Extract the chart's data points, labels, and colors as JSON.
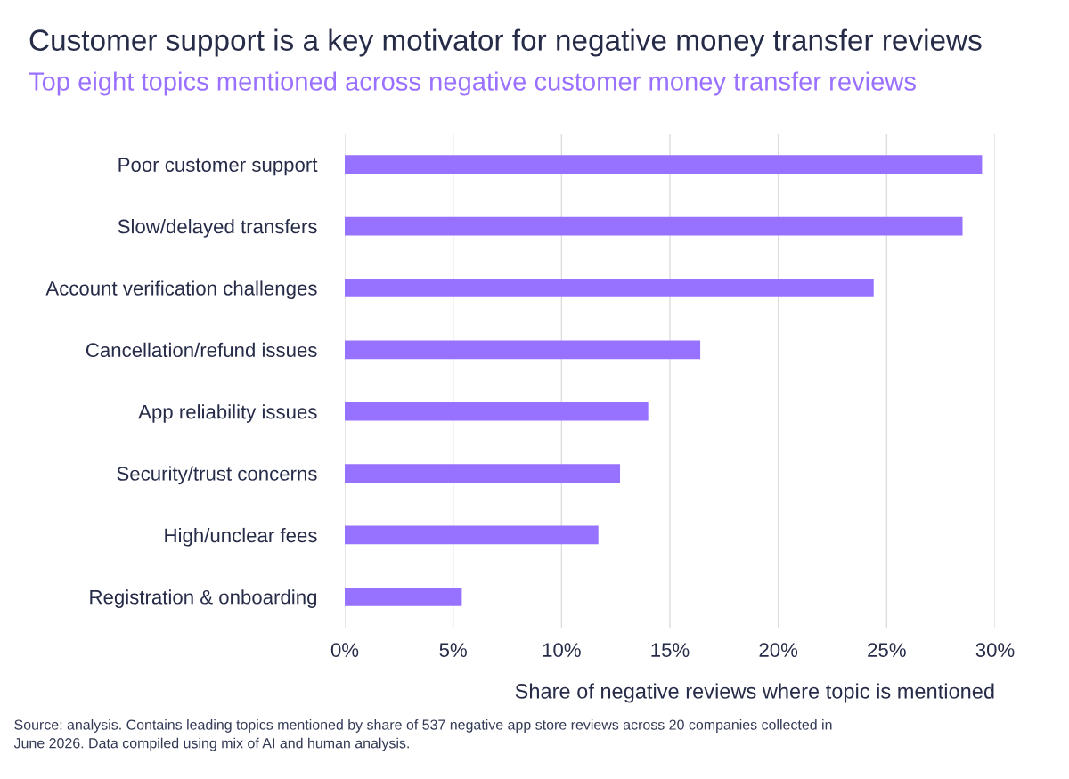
{
  "chart_data": {
    "type": "bar",
    "orientation": "horizontal",
    "title": "Customer support is a key motivator for negative money transfer reviews",
    "subtitle": "Top eight topics mentioned across negative customer money transfer reviews",
    "xlabel": "Share of negative reviews where topic is mentioned",
    "categories": [
      "Poor customer support",
      "Slow/delayed transfers",
      "Account verification challenges",
      "Cancellation/refund issues",
      "App reliability issues",
      "Security/trust concerns",
      "High/unclear fees",
      "Registration & onboarding"
    ],
    "values": [
      29.4,
      28.5,
      24.4,
      16.4,
      14.0,
      12.7,
      11.7,
      5.4
    ],
    "color": "#9771ff",
    "xlim": [
      0,
      30
    ],
    "xticks": [
      {
        "value": 0,
        "label": "0%"
      },
      {
        "value": 5,
        "label": "5%"
      },
      {
        "value": 10,
        "label": "10%"
      },
      {
        "value": 15,
        "label": "15%"
      },
      {
        "value": 20,
        "label": "20%"
      },
      {
        "value": 25,
        "label": "25%"
      },
      {
        "value": 30,
        "label": "30%"
      }
    ],
    "grid": "x",
    "annotations": [
      "Source: analysis. Contains leading topics mentioned by share of 537 negative app store reviews across 20 companies collected in June 2026. Data compiled using mix of AI and human analysis."
    ]
  }
}
